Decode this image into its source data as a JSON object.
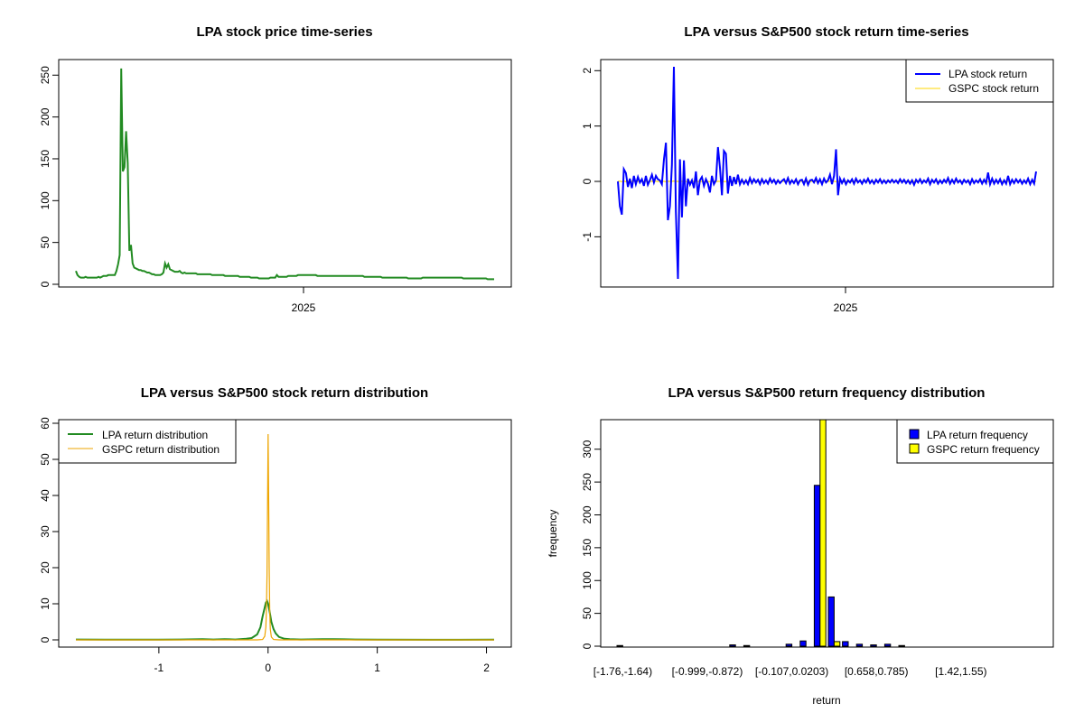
{
  "colors": {
    "price": "#228B22",
    "lpa_return": "#0000FF",
    "gspc_return": "#FFD700",
    "lpa_density": "#228B22",
    "gspc_density": "#EEA500",
    "lpa_bar": "#0000FF",
    "gspc_bar": "#FFFF00"
  },
  "chart_data": [
    {
      "type": "line",
      "title": "LPA stock price time-series",
      "xlabel": "",
      "ylabel": "",
      "x_ticks": [
        "2025"
      ],
      "y_ticks": [
        "0",
        "50",
        "100",
        "150",
        "200",
        "250"
      ],
      "ylim": [
        0,
        260
      ],
      "grid": false,
      "series": [
        {
          "values": [
            16,
            11,
            9,
            8,
            8,
            8,
            9,
            8,
            8,
            8,
            8,
            8,
            8,
            8,
            9,
            8,
            9,
            10,
            10,
            10,
            11,
            11,
            11,
            11,
            11,
            16,
            24,
            35,
            258,
            135,
            140,
            183,
            145,
            40,
            47,
            25,
            20,
            19,
            18,
            17,
            17,
            16,
            16,
            15,
            14,
            14,
            13,
            12,
            12,
            11,
            11,
            11,
            11,
            12,
            14,
            25,
            20,
            24,
            18,
            17,
            16,
            15,
            15,
            15,
            16,
            14,
            13,
            14,
            13,
            13,
            13,
            13,
            13,
            13,
            13,
            12,
            12,
            12,
            12,
            12,
            12,
            12,
            12,
            12,
            11,
            11,
            11,
            11,
            11,
            11,
            11,
            11,
            10,
            10,
            10,
            10,
            10,
            10,
            10,
            10,
            10,
            9,
            9,
            9,
            9,
            9,
            9,
            9,
            8,
            8,
            8,
            8,
            8,
            7,
            7,
            7,
            7,
            7,
            7,
            7,
            8,
            8,
            8,
            8,
            11,
            9,
            9,
            9,
            9,
            9,
            9,
            10,
            10,
            10,
            10,
            10,
            10,
            11,
            11,
            11,
            11,
            11,
            11,
            11,
            11,
            11,
            11,
            11,
            11,
            10,
            10,
            10,
            10,
            10,
            10,
            10,
            10,
            10,
            10,
            10,
            10,
            10,
            10,
            10,
            10,
            10,
            10,
            10,
            10,
            10,
            10,
            10,
            10,
            10,
            10,
            10,
            10,
            10,
            9,
            9,
            9,
            9,
            9,
            9,
            9,
            9,
            9,
            9,
            9,
            8,
            8,
            8,
            8,
            8,
            8,
            8,
            8,
            8,
            8,
            8,
            8,
            8,
            8,
            8,
            8,
            7,
            7,
            7,
            7,
            7,
            7,
            7,
            7,
            7,
            8,
            8,
            8,
            8,
            8,
            8,
            8,
            8,
            8,
            8,
            8,
            8,
            8,
            8,
            8,
            8,
            8,
            8,
            8,
            8,
            8,
            8,
            8,
            8,
            8,
            7,
            7,
            7,
            7,
            7,
            7,
            7,
            7,
            7,
            7,
            7,
            7,
            7,
            7,
            7,
            6,
            6,
            6,
            6,
            6
          ]
        }
      ]
    },
    {
      "type": "line",
      "title": "LPA versus S&P500 stock return time-series",
      "xlabel": "",
      "ylabel": "",
      "x_ticks": [
        "2025"
      ],
      "y_ticks": [
        "-1",
        "0",
        "1",
        "2"
      ],
      "ylim": [
        -1.76,
        2.07
      ],
      "legend_position": "top-right",
      "grid": false,
      "series": [
        {
          "name": "LPA stock return",
          "values": [
            0,
            -0.45,
            -0.6,
            0.22,
            0.15,
            -0.1,
            0.05,
            -0.12,
            0.1,
            -0.05,
            0.08,
            -0.02,
            0.04,
            -0.08,
            0.1,
            -0.06,
            0.02,
            0.12,
            -0.02,
            0.1,
            0.04,
            0.02,
            -0.05,
            0.4,
            0.7,
            -0.7,
            -0.45,
            0.3,
            2.07,
            -0.55,
            -1.76,
            0.4,
            -0.65,
            0.38,
            -0.45,
            0.05,
            -0.06,
            0.02,
            -0.12,
            0.18,
            -0.25,
            0.02,
            0.08,
            -0.08,
            0.04,
            -0.04,
            -0.2,
            0.1,
            -0.05,
            0.02,
            0.62,
            0.25,
            -0.25,
            0.55,
            0.5,
            -0.22,
            0.1,
            -0.08,
            0.08,
            -0.05,
            0.12,
            -0.05,
            0.03,
            -0.04,
            0.02,
            -0.05,
            0.06,
            -0.03,
            0.04,
            -0.02,
            0.03,
            -0.05,
            0.04,
            -0.03,
            0.02,
            -0.04,
            0.05,
            -0.02,
            0.03,
            -0.04,
            0.02,
            -0.03,
            0.01,
            0.04,
            -0.03,
            0.06,
            -0.04,
            0.02,
            -0.03,
            0.04,
            -0.05,
            0.02,
            0.03,
            -0.05,
            0.05,
            -0.06,
            0.02,
            0.03,
            -0.02,
            0.06,
            -0.03,
            0.04,
            -0.05,
            0.05,
            -0.02,
            0.02,
            0.12,
            -0.05,
            0.1,
            0.58,
            -0.25,
            0.05,
            -0.03,
            0.04,
            -0.05,
            0.02,
            -0.02,
            0.04,
            -0.04,
            0.05,
            -0.02,
            0.02,
            -0.04,
            0.03,
            -0.02,
            0.05,
            -0.03,
            0.02,
            -0.04,
            0.03,
            -0.02,
            0.04,
            -0.03,
            0.02,
            -0.03,
            0.02,
            -0.02,
            0.03,
            -0.02,
            0.02,
            -0.03,
            0.04,
            -0.02,
            0.03,
            -0.03,
            0.02,
            -0.04,
            0.02,
            -0.06,
            0.03,
            -0.02,
            0.04,
            -0.03,
            0.02,
            -0.02,
            0.05,
            -0.05,
            0.03,
            -0.02,
            0.04,
            -0.04,
            0.02,
            -0.03,
            0.03,
            -0.02,
            0.06,
            -0.04,
            0.03,
            -0.03,
            0.05,
            -0.02,
            0.02,
            -0.04,
            0.03,
            -0.02,
            0.02,
            -0.05,
            0.04,
            -0.03,
            0.02,
            -0.02,
            0.04,
            -0.04,
            0.03,
            -0.03,
            0.16,
            -0.05,
            0.05,
            -0.04,
            0.03,
            -0.03,
            0.04,
            -0.05,
            0.02,
            -0.04,
            0.1,
            -0.05,
            0.03,
            -0.03,
            0.04,
            -0.02,
            0.03,
            -0.04,
            0.02,
            -0.03,
            0.05,
            -0.05,
            0.03,
            -0.04,
            0.18
          ]
        },
        {
          "name": "GSPC stock return",
          "values": [
            0,
            0.005,
            -0.004,
            0.006,
            -0.003,
            0.004,
            -0.005,
            0.003,
            0.006,
            -0.004,
            0.002,
            -0.003,
            0.005,
            -0.002,
            0.004,
            -0.006,
            0.003,
            0.002,
            -0.004,
            0.005,
            -0.003,
            0.004,
            -0.002,
            0.003,
            -0.005,
            0.004,
            0.002,
            -0.003,
            0.006,
            -0.002,
            0.003,
            -0.004,
            0.005,
            -0.003,
            0.002,
            -0.005,
            0.004,
            -0.003,
            0.002,
            0.005,
            -0.004,
            0.003,
            -0.002,
            0.004,
            -0.003,
            0.006,
            -0.004,
            0.002,
            -0.003,
            0.005,
            -0.002,
            0.004,
            -0.003,
            0.002,
            -0.005,
            0.004,
            0.003,
            -0.002,
            0.005,
            -0.004,
            0.003,
            -0.003,
            0.004,
            -0.002,
            0.006,
            -0.005,
            0.002,
            -0.003,
            0.004,
            -0.002,
            0.003,
            -0.004,
            0.005,
            -0.003,
            0.002,
            0.004,
            -0.005,
            0.003,
            -0.002,
            0.004,
            -0.003,
            0.002,
            -0.004,
            0.005,
            -0.002,
            0.003,
            -0.003,
            0.004,
            -0.005,
            0.002,
            0.003,
            -0.004,
            0.006,
            -0.002,
            0.004,
            -0.003,
            0.002,
            -0.005,
            0.004,
            -0.002,
            0.003,
            -0.004,
            0.005,
            -0.003,
            0.002,
            0.004,
            -0.003,
            0.005,
            -0.002,
            0.003,
            -0.004,
            0.002,
            -0.003,
            0.005,
            -0.004,
            0.003,
            -0.002,
            0.004,
            -0.005,
            0.002,
            0.003,
            -0.003,
            0.004,
            -0.002,
            0.006,
            -0.004,
            0.003,
            -0.002,
            0.004,
            -0.003,
            0.002,
            -0.005,
            0.004,
            0.003,
            -0.002,
            0.005,
            -0.004,
            0.003,
            -0.003,
            0.004,
            -0.002,
            0.005,
            -0.003,
            0.002,
            -0.004,
            0.003,
            -0.002,
            0.004,
            -0.003,
            0.005,
            -0.004,
            0.002,
            0.003,
            -0.003,
            0.006,
            -0.002,
            0.004,
            -0.003,
            0.002,
            -0.004,
            0.005,
            -0.002,
            0.003,
            -0.004,
            0.004,
            -0.005,
            0.002,
            0.003,
            -0.004,
            0.005,
            -0.002,
            0.004,
            -0.003,
            0.002,
            -0.005,
            0.004,
            -0.002,
            0.003,
            -0.004,
            0.005,
            -0.003,
            0.002,
            0.004,
            -0.003,
            0.005,
            -0.002,
            0.003,
            -0.004,
            0.002,
            -0.003,
            0.005,
            -0.004,
            0.003,
            -0.002,
            0.004,
            -0.005,
            0.002,
            0.003,
            -0.003,
            0.004,
            -0.002,
            0.006,
            -0.004,
            0.003,
            -0.002,
            0.004,
            -0.003,
            0.002,
            -0.005,
            0.004,
            0.003,
            -0.002
          ]
        }
      ]
    },
    {
      "type": "line",
      "title": "LPA versus S&P500 stock return distribution",
      "xlabel": "",
      "ylabel": "",
      "x_ticks": [
        "-1",
        "0",
        "1",
        "2"
      ],
      "y_ticks": [
        "0",
        "10",
        "20",
        "30",
        "40",
        "50",
        "60"
      ],
      "xlim": [
        -1.76,
        2.07
      ],
      "ylim": [
        0,
        60
      ],
      "legend_position": "top-left",
      "grid": false,
      "series": [
        {
          "name": "LPA return distribution",
          "x": [
            -1.76,
            -1.5,
            -1.0,
            -0.8,
            -0.6,
            -0.5,
            -0.4,
            -0.3,
            -0.2,
            -0.15,
            -0.1,
            -0.07,
            -0.05,
            -0.03,
            -0.02,
            -0.01,
            0.0,
            0.01,
            0.02,
            0.03,
            0.05,
            0.07,
            0.1,
            0.15,
            0.2,
            0.3,
            0.5,
            0.6,
            0.8,
            1.0,
            1.5,
            2.07
          ],
          "y": [
            0.1,
            0.05,
            0.05,
            0.1,
            0.2,
            0.1,
            0.2,
            0.1,
            0.3,
            0.5,
            1.5,
            3.5,
            6.5,
            9.0,
            10.3,
            10.8,
            10.0,
            8.5,
            6.8,
            5.0,
            3.0,
            1.8,
            0.8,
            0.3,
            0.2,
            0.1,
            0.2,
            0.2,
            0.1,
            0.05,
            0.02,
            0.05
          ]
        },
        {
          "name": "GSPC return distribution",
          "x": [
            -1.76,
            -0.1,
            -0.05,
            -0.03,
            -0.02,
            -0.015,
            -0.01,
            -0.005,
            0.0,
            0.005,
            0.01,
            0.015,
            0.02,
            0.03,
            0.05,
            0.1,
            2.07
          ],
          "y": [
            0,
            0,
            0.1,
            1.0,
            3.5,
            8,
            18,
            38,
            57,
            40,
            20,
            8,
            3,
            0.8,
            0.1,
            0,
            0
          ]
        }
      ]
    },
    {
      "type": "bar",
      "title": "LPA versus S&P500 return frequency distribution",
      "xlabel": "return",
      "ylabel": "frequency",
      "x_tick_labels": [
        "[-1.76,-1.64)",
        "[-0.999,-0.872)",
        "[-0.107,0.0203)",
        "[0.658,0.785)",
        "[1.42,1.55)"
      ],
      "y_ticks": [
        "0",
        "50",
        "100",
        "150",
        "200",
        "250",
        "300"
      ],
      "ylim": [
        0,
        345
      ],
      "legend_position": "top-right",
      "grid": false,
      "series": [
        {
          "name": "LPA return frequency",
          "values": [
            1,
            0,
            0,
            0,
            0,
            0,
            0,
            0,
            2,
            1,
            0,
            0,
            3,
            8,
            245,
            75,
            7,
            3,
            2,
            3,
            1,
            0,
            0,
            0,
            0,
            0,
            0,
            0,
            0,
            0,
            0
          ]
        },
        {
          "name": "GSPC return frequency",
          "values": [
            0,
            0,
            0,
            0,
            0,
            0,
            0,
            0,
            0,
            0,
            0,
            0,
            0,
            0,
            345,
            7,
            0,
            0,
            0,
            0,
            0,
            0,
            0,
            0,
            0,
            0,
            0,
            0,
            0,
            0,
            0
          ]
        }
      ]
    }
  ]
}
